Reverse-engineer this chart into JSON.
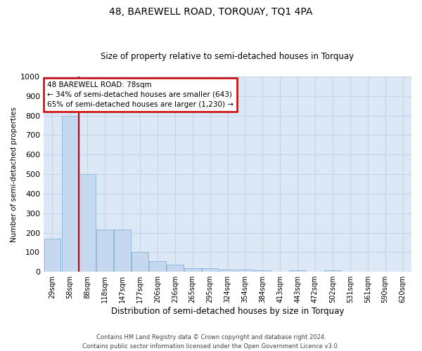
{
  "title": "48, BAREWELL ROAD, TORQUAY, TQ1 4PA",
  "subtitle": "Size of property relative to semi-detached houses in Torquay",
  "xlabel": "Distribution of semi-detached houses by size in Torquay",
  "ylabel": "Number of semi-detached properties",
  "footer_line1": "Contains HM Land Registry data © Crown copyright and database right 2024.",
  "footer_line2": "Contains public sector information licensed under the Open Government Licence v3.0.",
  "categories": [
    "29sqm",
    "58sqm",
    "88sqm",
    "118sqm",
    "147sqm",
    "177sqm",
    "206sqm",
    "236sqm",
    "265sqm",
    "295sqm",
    "324sqm",
    "354sqm",
    "384sqm",
    "413sqm",
    "443sqm",
    "472sqm",
    "502sqm",
    "531sqm",
    "561sqm",
    "590sqm",
    "620sqm"
  ],
  "values": [
    170,
    800,
    500,
    215,
    215,
    100,
    55,
    38,
    20,
    20,
    10,
    10,
    8,
    0,
    8,
    0,
    8,
    0,
    0,
    0,
    0
  ],
  "bar_color": "#c5d8f0",
  "bar_edge_color": "#8ab4d8",
  "vline_index": 1.5,
  "vline_color": "#cc0000",
  "annotation_title": "48 BAREWELL ROAD: 78sqm",
  "annotation_line2": "← 34% of semi-detached houses are smaller (643)",
  "annotation_line3": "65% of semi-detached houses are larger (1,230) →",
  "annotation_box_color": "#ffffff",
  "annotation_box_edge": "#cc0000",
  "ylim": [
    0,
    1000
  ],
  "yticks": [
    0,
    100,
    200,
    300,
    400,
    500,
    600,
    700,
    800,
    900,
    1000
  ],
  "grid_color": "#c8d4e8",
  "bg_color": "#dce8f5",
  "title_fontsize": 10,
  "subtitle_fontsize": 8.5,
  "xlabel_fontsize": 8.5,
  "ylabel_fontsize": 7.5,
  "tick_fontsize": 7,
  "footer_fontsize": 6
}
